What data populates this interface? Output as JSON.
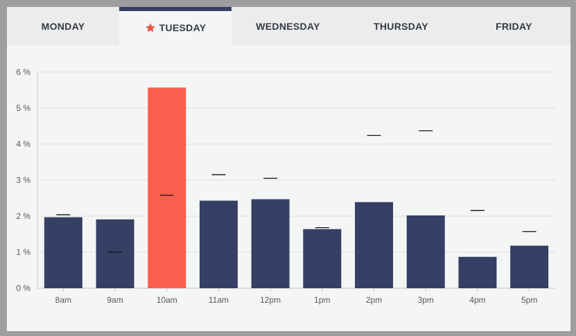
{
  "tabs": [
    {
      "label": "MONDAY",
      "active": false
    },
    {
      "label": "TUESDAY",
      "active": true,
      "icon": "star-icon"
    },
    {
      "label": "WEDNESDAY",
      "active": false
    },
    {
      "label": "THURSDAY",
      "active": false
    },
    {
      "label": "FRIDAY",
      "active": false
    }
  ],
  "colors": {
    "bar": "#363f64",
    "highlight": "#fa5f4d",
    "marker": "#111111",
    "accent": "#363f64",
    "star": "#e9574a"
  },
  "chart_data": {
    "type": "bar",
    "categories": [
      "8am",
      "9am",
      "10am",
      "11am",
      "12pm",
      "1pm",
      "2pm",
      "3pm",
      "4pm",
      "5pm"
    ],
    "values": [
      1.97,
      1.91,
      5.57,
      2.43,
      2.47,
      1.64,
      2.39,
      2.02,
      0.87,
      1.18
    ],
    "markers": [
      2.04,
      1.0,
      2.58,
      3.15,
      3.05,
      1.68,
      4.24,
      4.37,
      2.16,
      1.57
    ],
    "highlight_index": 2,
    "ylim": [
      0,
      6
    ],
    "yticks": [
      "0 %",
      "1 %",
      "2 %",
      "3 %",
      "4 %",
      "5 %",
      "6 %"
    ],
    "grid": true
  }
}
